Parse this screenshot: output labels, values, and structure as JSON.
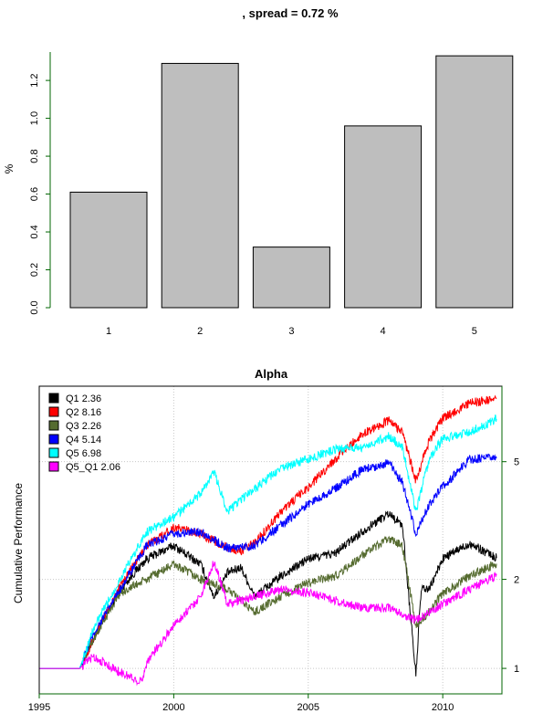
{
  "chart_data": [
    {
      "type": "bar",
      "title": ", spread = 0.72 %",
      "xlabel": "",
      "ylabel": "%",
      "categories": [
        "1",
        "2",
        "3",
        "4",
        "5"
      ],
      "values": [
        0.61,
        1.29,
        0.32,
        0.96,
        1.33
      ],
      "ylim": [
        0,
        1.35
      ],
      "yticks": [
        "0.0",
        "0.2",
        "0.4",
        "0.6",
        "0.8",
        "1.0",
        "1.2"
      ],
      "bar_color": "#bebebe",
      "axis_color": "#006400"
    },
    {
      "type": "line",
      "title": "Alpha",
      "xlabel": "",
      "ylabel": "Cumulative Performance",
      "log_y": true,
      "xlim": [
        1995,
        2012.2
      ],
      "ylim": [
        0.82,
        9.0
      ],
      "xticks": [
        "1995",
        "2000",
        "2005",
        "2010"
      ],
      "right_ticks": [
        "1",
        "2",
        "5"
      ],
      "grid": true,
      "legend_position": "top-left",
      "series": [
        {
          "name": "Q1 2.36",
          "color": "#000000",
          "x": [
            1995,
            1996.5,
            1997,
            1998,
            1999,
            2000,
            2001,
            2001.5,
            2002,
            2002.5,
            2003,
            2004,
            2005,
            2006,
            2007,
            2008,
            2008.5,
            2009,
            2009.2,
            2009.5,
            2010,
            2011,
            2012
          ],
          "y": [
            1.0,
            1.0,
            1.25,
            1.85,
            2.35,
            2.6,
            2.25,
            1.75,
            2.1,
            2.2,
            1.75,
            2.05,
            2.35,
            2.45,
            2.9,
            3.35,
            3.05,
            0.95,
            1.85,
            1.85,
            2.35,
            2.65,
            2.36
          ]
        },
        {
          "name": "Q2 8.16",
          "color": "#ff0000",
          "x": [
            1995,
            1996.5,
            1997,
            1998,
            1999,
            2000,
            2001,
            2002,
            2002.5,
            2003,
            2004,
            2005,
            2006,
            2007,
            2008,
            2008.5,
            2009,
            2009.5,
            2010,
            2011,
            2012
          ],
          "y": [
            1.0,
            1.0,
            1.25,
            1.9,
            2.6,
            3.0,
            2.85,
            2.55,
            2.5,
            2.65,
            3.4,
            4.1,
            5.1,
            6.2,
            6.9,
            6.3,
            4.3,
            5.9,
            7.0,
            7.9,
            8.16
          ]
        },
        {
          "name": "Q3 2.26",
          "color": "#556b2f",
          "x": [
            1995,
            1996.5,
            1997,
            1998,
            1999,
            2000,
            2001,
            2002,
            2003,
            2004,
            2005,
            2006,
            2007,
            2008,
            2008.5,
            2009,
            2009.5,
            2010,
            2011,
            2012
          ],
          "y": [
            1.0,
            1.0,
            1.25,
            1.8,
            2.0,
            2.25,
            2.0,
            1.85,
            1.55,
            1.75,
            1.95,
            2.05,
            2.4,
            2.75,
            2.6,
            1.4,
            1.55,
            1.8,
            2.05,
            2.26
          ]
        },
        {
          "name": "Q4 5.14",
          "color": "#0000ff",
          "x": [
            1995,
            1996.5,
            1997,
            1998,
            1999,
            2000,
            2001,
            2002,
            2003,
            2004,
            2005,
            2006,
            2007,
            2008,
            2008.5,
            2009,
            2009.5,
            2010,
            2011,
            2012
          ],
          "y": [
            1.0,
            1.0,
            1.3,
            1.85,
            2.6,
            2.85,
            2.9,
            2.55,
            2.6,
            3.05,
            3.6,
            4.05,
            4.7,
            4.95,
            4.25,
            2.85,
            3.6,
            4.1,
            5.1,
            5.14
          ]
        },
        {
          "name": "Q5 6.98",
          "color": "#00ffff",
          "x": [
            1995,
            1996.5,
            1997,
            1998,
            1999,
            2000,
            2001,
            2001.5,
            2002,
            2003,
            2004,
            2005,
            2006,
            2007,
            2008,
            2008.5,
            2009,
            2009.5,
            2010,
            2011,
            2012
          ],
          "y": [
            1.0,
            1.0,
            1.35,
            2.0,
            2.9,
            3.25,
            3.9,
            4.6,
            3.4,
            4.05,
            4.75,
            5.1,
            5.5,
            5.6,
            6.1,
            5.6,
            3.4,
            5.1,
            6.0,
            6.3,
            6.98
          ]
        },
        {
          "name": "Q5_Q1 2.06",
          "color": "#ff00ff",
          "x": [
            1995,
            1996.5,
            1997,
            1998,
            1998.8,
            1999,
            2000,
            2001,
            2001.5,
            2002,
            2003,
            2004,
            2005,
            2006,
            2007,
            2008,
            2009,
            2009.5,
            2010,
            2011,
            2012
          ],
          "y": [
            1.0,
            1.0,
            1.1,
            0.97,
            0.9,
            1.05,
            1.4,
            1.75,
            2.3,
            1.65,
            1.75,
            1.85,
            1.8,
            1.7,
            1.6,
            1.6,
            1.45,
            1.55,
            1.65,
            1.85,
            2.06
          ]
        }
      ]
    }
  ]
}
